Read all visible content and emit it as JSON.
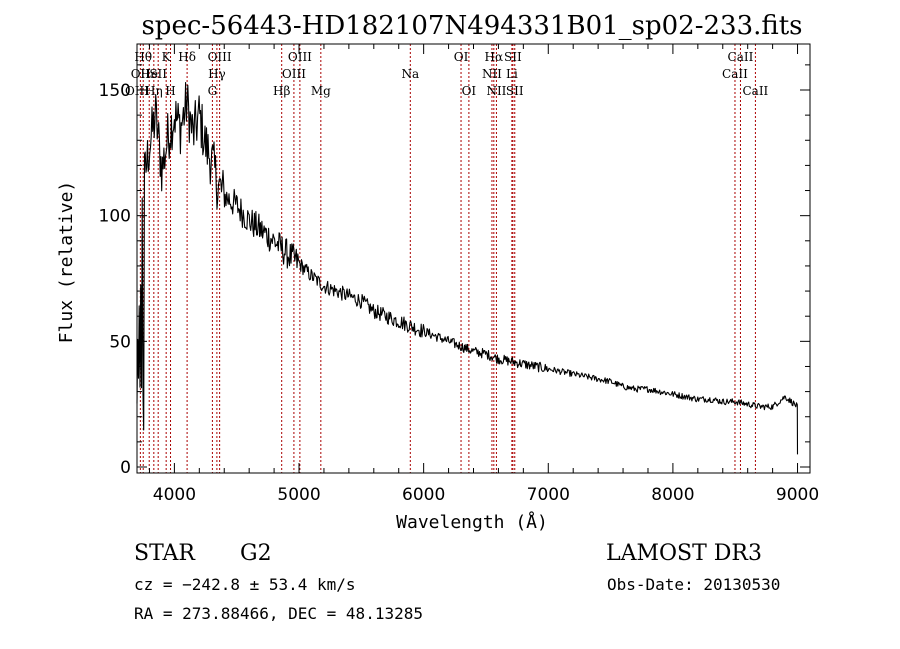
{
  "chart_data": {
    "type": "line",
    "title": "spec-56443-HD182107N494331B01_sp02-233.fits",
    "xlabel": "Wavelength (Å)",
    "ylabel": "Flux (relative)",
    "xlim": [
      3700,
      9100
    ],
    "ylim": [
      0,
      165
    ],
    "xticks": [
      4000,
      5000,
      6000,
      7000,
      8000,
      9000
    ],
    "yticks": [
      0,
      50,
      100,
      150
    ],
    "grid": false,
    "legend": "none",
    "series": [
      {
        "name": "flux",
        "x": [
          3700,
          3750,
          3800,
          3850,
          3900,
          3950,
          4000,
          4050,
          4100,
          4150,
          4200,
          4250,
          4300,
          4350,
          4400,
          4500,
          4600,
          4700,
          4800,
          4900,
          5000,
          5100,
          5200,
          5300,
          5400,
          5500,
          5600,
          5700,
          5800,
          5900,
          6000,
          6100,
          6200,
          6300,
          6400,
          6500,
          6600,
          6700,
          6800,
          6900,
          7000,
          7100,
          7200,
          7300,
          7400,
          7500,
          7600,
          7700,
          7800,
          7900,
          8000,
          8100,
          8200,
          8300,
          8400,
          8500,
          8600,
          8700,
          8800,
          8900,
          9000
        ],
        "values": [
          30,
          112,
          128,
          140,
          118,
          132,
          140,
          135,
          145,
          132,
          140,
          128,
          122,
          112,
          108,
          104,
          98,
          94,
          90,
          85,
          81,
          76,
          72,
          70,
          68,
          66,
          62,
          60,
          58,
          56,
          54,
          52,
          50,
          48,
          46,
          45,
          43,
          42,
          41,
          40,
          39,
          38,
          37,
          36,
          35,
          34,
          32,
          31,
          31,
          30,
          29,
          28,
          27,
          27,
          26,
          26,
          25,
          24,
          24,
          28,
          24
        ]
      }
    ],
    "lines": [
      {
        "label": "Hθ",
        "x": 3750,
        "row": 1
      },
      {
        "label": "OII",
        "x": 3727,
        "row": 2
      },
      {
        "label": "OIII",
        "x": 3700,
        "row": 3
      },
      {
        "label": "He",
        "x": 3798,
        "row": 2
      },
      {
        "label": "Hη",
        "x": 3835,
        "row": 3
      },
      {
        "label": "K",
        "x": 3934,
        "row": 1
      },
      {
        "label": "SII",
        "x": 3870,
        "row": 2
      },
      {
        "label": "H",
        "x": 3969,
        "row": 3
      },
      {
        "label": "Hδ",
        "x": 4102,
        "row": 1
      },
      {
        "label": "OIII",
        "x": 4363,
        "row": 1
      },
      {
        "label": "Hγ",
        "x": 4341,
        "row": 2
      },
      {
        "label": "G",
        "x": 4305,
        "row": 3
      },
      {
        "label": "Hβ",
        "x": 4861,
        "row": 3
      },
      {
        "label": "OIII",
        "x": 5007,
        "row": 1
      },
      {
        "label": "OIII",
        "x": 4959,
        "row": 2
      },
      {
        "label": "Mg",
        "x": 5175,
        "row": 3
      },
      {
        "label": "Na",
        "x": 5893,
        "row": 2
      },
      {
        "label": "OI",
        "x": 6300,
        "row": 1
      },
      {
        "label": "OI",
        "x": 6363,
        "row": 3
      },
      {
        "label": "Hα",
        "x": 6563,
        "row": 1
      },
      {
        "label": "NII",
        "x": 6548,
        "row": 2
      },
      {
        "label": "NII",
        "x": 6584,
        "row": 3
      },
      {
        "label": "SII",
        "x": 6716,
        "row": 1
      },
      {
        "label": "Li",
        "x": 6708,
        "row": 2
      },
      {
        "label": "SII",
        "x": 6731,
        "row": 3
      },
      {
        "label": "CaII",
        "x": 8542,
        "row": 1
      },
      {
        "label": "CaII",
        "x": 8498,
        "row": 2
      },
      {
        "label": "CaII",
        "x": 8662,
        "row": 3
      }
    ]
  },
  "info": {
    "object_type": "STAR",
    "subclass": "G2",
    "survey": "LAMOST DR3",
    "cz": "cz = −242.8 ± 53.4 km/s",
    "obs_date": "Obs-Date: 20130530",
    "coords": "RA = 273.88466, DEC =  48.13285"
  },
  "colors": {
    "line": "#000000",
    "marker": "#aa0000"
  }
}
